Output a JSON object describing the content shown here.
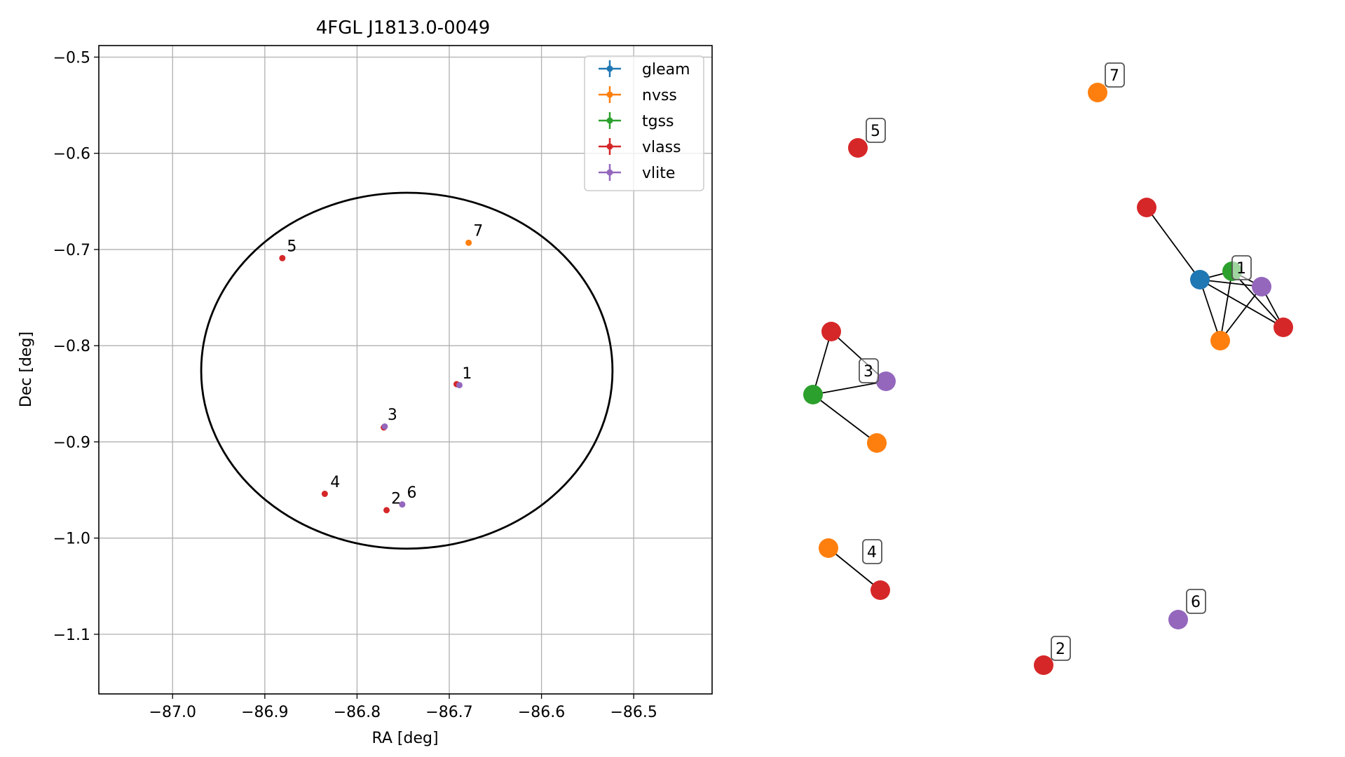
{
  "chart_data": [
    {
      "type": "scatter",
      "title": "4FGL J1813.0-0049",
      "xlabel": "RA [deg]",
      "ylabel": "Dec [deg]",
      "xlim": [
        -87.08,
        -86.415
      ],
      "ylim": [
        -1.162,
        -0.488
      ],
      "xticks": [
        -87.0,
        -86.9,
        -86.8,
        -86.7,
        -86.6,
        -86.5
      ],
      "xtick_labels": [
        "−87.0",
        "−86.9",
        "−86.8",
        "−86.7",
        "−86.6",
        "−86.5"
      ],
      "yticks": [
        -0.5,
        -0.6,
        -0.7,
        -0.8,
        -0.9,
        -1.0,
        -1.1
      ],
      "ytick_labels": [
        "−0.5",
        "−0.6",
        "−0.7",
        "−0.8",
        "−0.9",
        "−1.0",
        "−1.1"
      ],
      "grid": true,
      "legend_position": "top-right",
      "series": [
        {
          "name": "gleam",
          "color": "#1f77b4",
          "points": []
        },
        {
          "name": "nvss",
          "color": "#ff7f0e",
          "points": [
            [
              -86.679,
              -0.693
            ]
          ]
        },
        {
          "name": "tgss",
          "color": "#2ca02c",
          "points": []
        },
        {
          "name": "vlass",
          "color": "#d62728",
          "points": [
            [
              -86.881,
              -0.709
            ],
            [
              -86.692,
              -0.84
            ],
            [
              -86.771,
              -0.885
            ],
            [
              -86.835,
              -0.954
            ],
            [
              -86.768,
              -0.971
            ]
          ]
        },
        {
          "name": "vlite",
          "color": "#9467bd",
          "points": [
            [
              -86.689,
              -0.841
            ],
            [
              -86.77,
              -0.884
            ],
            [
              -86.751,
              -0.965
            ]
          ]
        }
      ],
      "annotations": [
        {
          "text": "1",
          "x": -86.686,
          "y": -0.834
        },
        {
          "text": "2",
          "x": -86.763,
          "y": -0.964
        },
        {
          "text": "3",
          "x": -86.767,
          "y": -0.877
        },
        {
          "text": "4",
          "x": -86.829,
          "y": -0.947
        },
        {
          "text": "5",
          "x": -86.876,
          "y": -0.702
        },
        {
          "text": "6",
          "x": -86.746,
          "y": -0.958
        },
        {
          "text": "7",
          "x": -86.674,
          "y": -0.686
        }
      ],
      "ellipse": {
        "center": [
          -86.746,
          -0.826
        ],
        "semi_major": 0.223,
        "semi_minor": 0.185,
        "color": "#000000"
      }
    },
    {
      "type": "network",
      "node_colors": {
        "gleam": "#1f77b4",
        "nvss": "#ff7f0e",
        "tgss": "#2ca02c",
        "vlass": "#d62728",
        "vlite": "#9467bd"
      },
      "groups": [
        {
          "label": "1",
          "nodes": [
            "gleam",
            "tgss",
            "vlite",
            "vlass",
            "nvss",
            "vlass"
          ]
        },
        {
          "label": "2",
          "nodes": [
            "vlass"
          ]
        },
        {
          "label": "3",
          "nodes": [
            "vlass",
            "tgss",
            "vlite",
            "nvss"
          ]
        },
        {
          "label": "4",
          "nodes": [
            "nvss",
            "vlass"
          ]
        },
        {
          "label": "5",
          "nodes": [
            "vlass"
          ]
        },
        {
          "label": "6",
          "nodes": [
            "vlite"
          ]
        },
        {
          "label": "7",
          "nodes": [
            "nvss"
          ]
        }
      ]
    }
  ]
}
